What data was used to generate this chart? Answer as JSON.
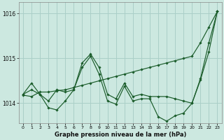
{
  "title": "Graphe pression niveau de la mer (hPa)",
  "background_color": "#cce8e0",
  "grid_color": "#aacfc8",
  "line_color": "#1a5c2a",
  "x_labels": [
    "0",
    "1",
    "2",
    "3",
    "4",
    "5",
    "6",
    "7",
    "8",
    "9",
    "10",
    "11",
    "12",
    "13",
    "14",
    "15",
    "16",
    "17",
    "18",
    "19",
    "20",
    "21",
    "22",
    "23"
  ],
  "ylim": [
    1013.55,
    1016.25
  ],
  "yticks": [
    1014,
    1015,
    1016
  ],
  "series": [
    [
      1014.2,
      1014.45,
      1014.2,
      1014.05,
      1014.3,
      1014.25,
      1014.3,
      1014.9,
      1015.1,
      1014.8,
      1014.2,
      1014.1,
      1014.45,
      1014.15,
      1014.2,
      1014.15,
      1014.15,
      1014.15,
      1014.1,
      1014.05,
      1014.0,
      1014.55,
      1015.35,
      1016.05
    ],
    [
      1014.2,
      1014.3,
      1014.2,
      1013.9,
      1013.85,
      1014.05,
      1014.3,
      1014.8,
      1015.05,
      1014.65,
      1014.05,
      1013.98,
      1014.38,
      1014.05,
      1014.1,
      1014.1,
      1013.7,
      1013.6,
      1013.72,
      1013.78,
      1014.0,
      1014.52,
      1015.15,
      1016.05
    ],
    [
      1014.18,
      1014.15,
      1014.25,
      1014.25,
      1014.28,
      1014.3,
      1014.35,
      1014.4,
      1014.45,
      1014.5,
      1014.55,
      1014.6,
      1014.65,
      1014.7,
      1014.75,
      1014.8,
      1014.85,
      1014.9,
      1014.95,
      1015.0,
      1015.05,
      1015.35,
      1015.7,
      1016.05
    ]
  ]
}
